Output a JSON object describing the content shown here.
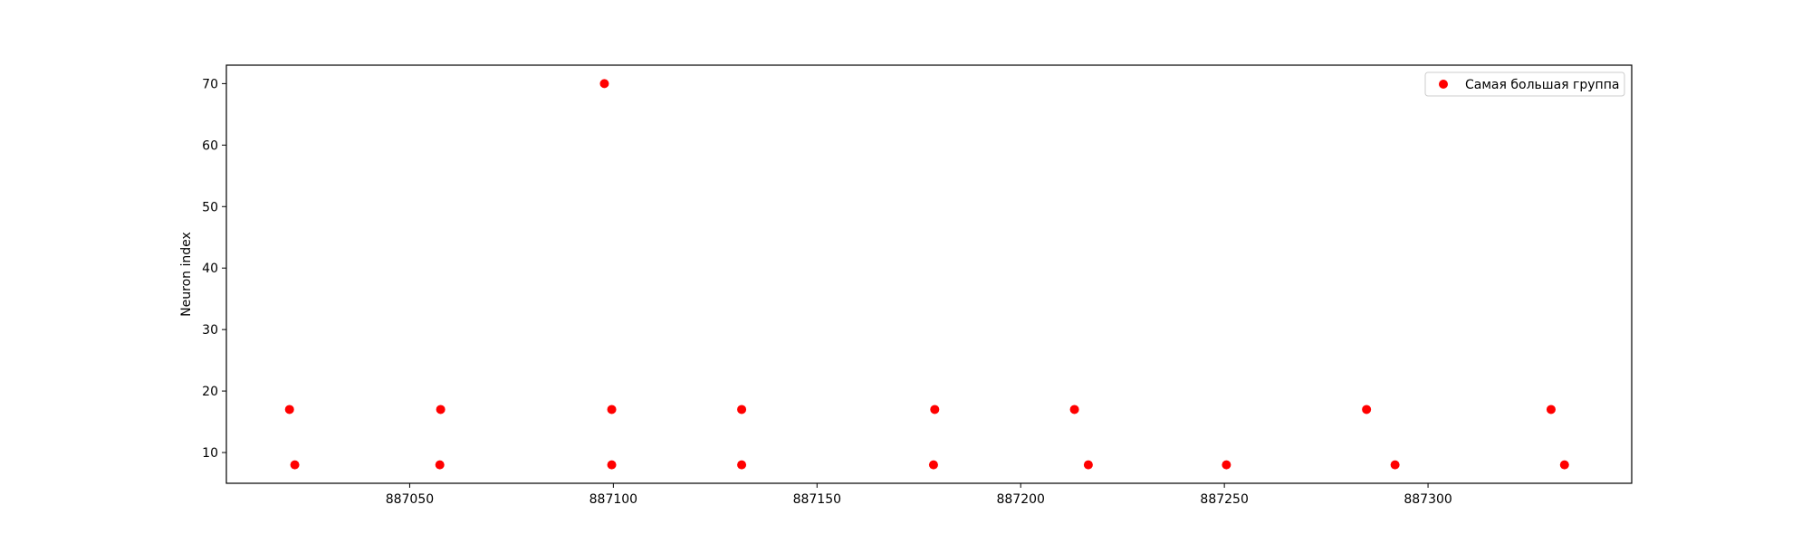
{
  "chart_data": {
    "type": "scatter",
    "title": "",
    "xlabel": "",
    "ylabel": "Neuron index",
    "xlim": [
      887005,
      887350
    ],
    "ylim": [
      5,
      73
    ],
    "xticks": [
      887050,
      887100,
      887150,
      887200,
      887250,
      887300
    ],
    "xtick_labels": [
      "887050",
      "887100",
      "887150",
      "887200",
      "887250",
      "887300"
    ],
    "yticks": [
      10,
      20,
      30,
      40,
      50,
      60,
      70
    ],
    "ytick_labels": [
      "10",
      "20",
      "30",
      "40",
      "50",
      "60",
      "70"
    ],
    "grid": false,
    "legend_position": "top-right",
    "series": [
      {
        "name": "Самая большая группа",
        "color": "#ff0000",
        "marker": "circle",
        "points": [
          {
            "x": 887020.5,
            "y": 17
          },
          {
            "x": 887021.8,
            "y": 8
          },
          {
            "x": 887057.6,
            "y": 17
          },
          {
            "x": 887057.4,
            "y": 8
          },
          {
            "x": 887097.8,
            "y": 70
          },
          {
            "x": 887099.6,
            "y": 17
          },
          {
            "x": 887099.6,
            "y": 8
          },
          {
            "x": 887131.5,
            "y": 17
          },
          {
            "x": 887131.5,
            "y": 8
          },
          {
            "x": 887178.9,
            "y": 17
          },
          {
            "x": 887178.6,
            "y": 8
          },
          {
            "x": 887213.2,
            "y": 17
          },
          {
            "x": 887216.6,
            "y": 8
          },
          {
            "x": 887250.5,
            "y": 8
          },
          {
            "x": 887284.9,
            "y": 17
          },
          {
            "x": 887291.9,
            "y": 8
          },
          {
            "x": 887330.2,
            "y": 17
          },
          {
            "x": 887333.5,
            "y": 8
          }
        ]
      }
    ]
  }
}
